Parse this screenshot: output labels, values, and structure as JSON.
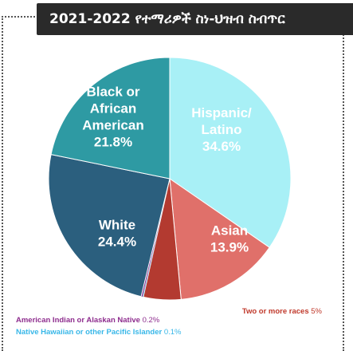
{
  "title": "2021-2022 የተማሪዎች ስነ-ህዝብ ስብጥር",
  "chart_data": {
    "type": "pie",
    "title": "2021-2022 የተማሪዎች ስነ-ህዝብ ስብጥር",
    "slices": [
      {
        "name": "Hispanic/ Latino",
        "lines": [
          "Hispanic/",
          "Latino"
        ],
        "value": 34.6,
        "display": "34.6%",
        "color": "#a8f0f6",
        "label_color": "#222222"
      },
      {
        "name": "Asian",
        "lines": [
          "Asian"
        ],
        "value": 13.9,
        "display": "13.9%",
        "color": "#e0706a",
        "label_color": "#ffffff"
      },
      {
        "name": "Two or more races",
        "lines": [],
        "value": 5,
        "display": "5%",
        "color": "#b33a30",
        "label_color": "#c0392b"
      },
      {
        "name": "Native Hawaiian or other Pacific Islander",
        "lines": [],
        "value": 0.1,
        "display": "0.1%",
        "color": "#38b7e8",
        "label_color": "#38b7e8"
      },
      {
        "name": "American Indian or Alaskan Native",
        "lines": [],
        "value": 0.2,
        "display": "0.2%",
        "color": "#8e2d8e",
        "label_color": "#8e2d8e"
      },
      {
        "name": "White",
        "lines": [
          "White"
        ],
        "value": 24.4,
        "display": "24.4%",
        "color": "#2b5f7e",
        "label_color": "#ffffff"
      },
      {
        "name": "Black or African American",
        "lines": [
          "Black or",
          "African",
          "American"
        ],
        "value": 21.8,
        "display": "21.8%",
        "color": "#2e9aa3",
        "label_color": "#ffffff"
      }
    ]
  }
}
